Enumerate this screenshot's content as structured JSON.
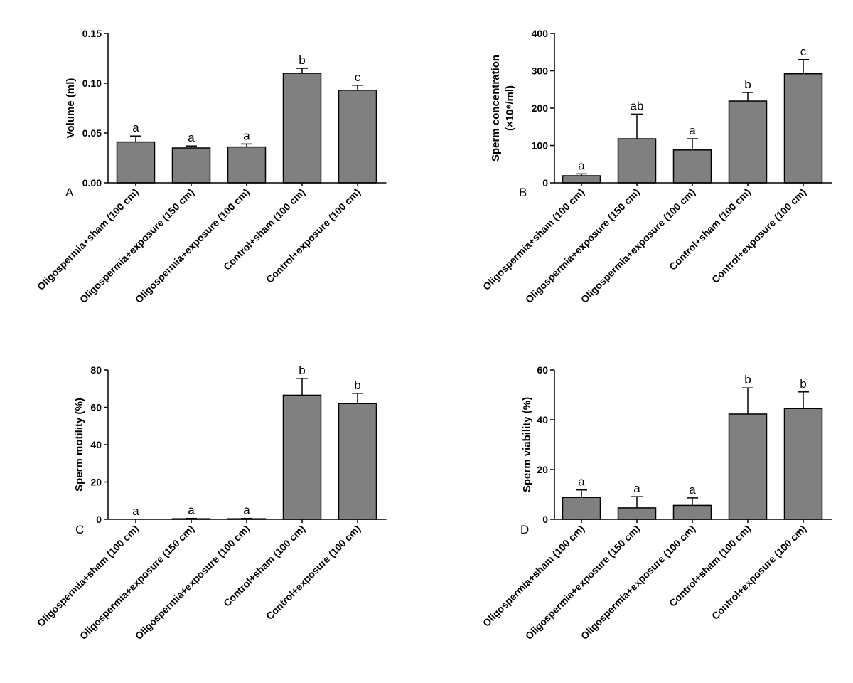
{
  "chart_data": [
    {
      "type": "bar",
      "panel": "A",
      "ylabel": "Volume (ml)",
      "ylim": [
        0,
        0.15
      ],
      "yticks": [
        "0.00",
        "0.05",
        "0.10",
        "0.15"
      ],
      "categories": [
        "Oligospermia+sham (100 cm)",
        "Oligospermia+exposure (150 cm)",
        "Oligospermia+exposure (100 cm)",
        "Control+sham (100 cm)",
        "Control+exposure (100 cm)"
      ],
      "values": [
        0.041,
        0.035,
        0.036,
        0.11,
        0.093
      ],
      "errors": [
        0.006,
        0.002,
        0.003,
        0.005,
        0.005
      ],
      "significance": [
        "a",
        "a",
        "a",
        "b",
        "c"
      ],
      "bar_color": "#808080"
    },
    {
      "type": "bar",
      "panel": "B",
      "ylabel": "Sperm concentration",
      "ylabel_line2": "(×10⁶/ml)",
      "ylim": [
        0,
        400
      ],
      "yticks": [
        "0",
        "100",
        "200",
        "300",
        "400"
      ],
      "categories": [
        "Oligospermia+sham (100 cm)",
        "Oligospermia+exposure (150 cm)",
        "Oligospermia+exposure (100 cm)",
        "Control+sham (100 cm)",
        "Control+exposure (100 cm)"
      ],
      "values": [
        19,
        118,
        88,
        219,
        292
      ],
      "errors": [
        5,
        66,
        30,
        23,
        38
      ],
      "significance": [
        "a",
        "ab",
        "a",
        "b",
        "c"
      ],
      "bar_color": "#808080"
    },
    {
      "type": "bar",
      "panel": "C",
      "ylabel": "Sperm motility (%)",
      "ylim": [
        0,
        80
      ],
      "yticks": [
        "0",
        "20",
        "40",
        "60",
        "80"
      ],
      "categories": [
        "Oligospermia+sham (100 cm)",
        "Oligospermia+exposure (150 cm)",
        "Oligospermia+exposure (100 cm)",
        "Control+sham (100 cm)",
        "Control+exposure (100 cm)"
      ],
      "values": [
        0,
        0.3,
        0.3,
        66.5,
        62
      ],
      "errors": [
        0,
        0.2,
        0.2,
        9,
        5.5
      ],
      "significance": [
        "a",
        "a",
        "a",
        "b",
        "b"
      ],
      "bar_color": "#808080"
    },
    {
      "type": "bar",
      "panel": "D",
      "ylabel": "Sperm viability (%)",
      "ylim": [
        0,
        60
      ],
      "yticks": [
        "0",
        "20",
        "40",
        "60"
      ],
      "categories": [
        "Oligospermia+sham (100 cm)",
        "Oligospermia+exposure (150 cm)",
        "Oligospermia+exposure (100 cm)",
        "Control+sham (100 cm)",
        "Control+exposure (100 cm)"
      ],
      "values": [
        8.8,
        4.6,
        5.6,
        42.3,
        44.5
      ],
      "errors": [
        3,
        4.5,
        3,
        10.5,
        6.7
      ],
      "significance": [
        "a",
        "a",
        "a",
        "b",
        "b"
      ],
      "bar_color": "#808080"
    }
  ]
}
